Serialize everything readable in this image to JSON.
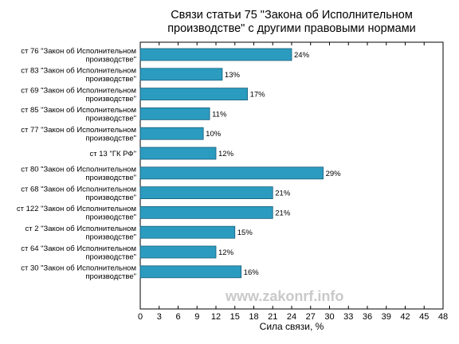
{
  "chart_data": {
    "type": "bar",
    "orientation": "horizontal",
    "title_lines": [
      "Связи статьи 75 \"Закона об Исполнительном",
      "производстве\" с другими правовыми нормами"
    ],
    "categories": [
      [
        "ст 76 \"Закон об Исполнительном",
        "производстве\""
      ],
      [
        "ст 83 \"Закон об Исполнительном",
        "производстве\""
      ],
      [
        "ст 69 \"Закон об Исполнительном",
        "производстве\""
      ],
      [
        "ст 85 \"Закон об Исполнительном",
        "производстве\""
      ],
      [
        "ст 77 \"Закон об Исполнительном",
        "производстве\""
      ],
      [
        "ст 13 \"ГК РФ\""
      ],
      [
        "ст 80 \"Закон об Исполнительном",
        "производстве\""
      ],
      [
        "ст 68 \"Закон об Исполнительном",
        "производстве\""
      ],
      [
        "ст 122 \"Закон об Исполнительном",
        "производстве\""
      ],
      [
        "ст 2 \"Закон об Исполнительном",
        "производстве\""
      ],
      [
        "ст 64 \"Закон об Исполнительном",
        "производстве\""
      ],
      [
        "ст 30 \"Закон об Исполнительном",
        "производстве\""
      ]
    ],
    "values": [
      24,
      13,
      17,
      11,
      10,
      12,
      29,
      21,
      21,
      15,
      12,
      16
    ],
    "data_labels": [
      "24%",
      "13%",
      "17%",
      "11%",
      "10%",
      "12%",
      "29%",
      "21%",
      "21%",
      "15%",
      "12%",
      "16%"
    ],
    "xlabel": "Сила связи, %",
    "ylabel": "",
    "xlim": [
      0,
      48
    ],
    "xticks": [
      0,
      3,
      6,
      9,
      12,
      15,
      18,
      21,
      24,
      27,
      30,
      33,
      36,
      39,
      42,
      45,
      48
    ],
    "grid": false,
    "bar_color": "#2b9cc0",
    "bar_edge_color": "#1b5e78",
    "watermark": "www.zakonrf.info"
  }
}
